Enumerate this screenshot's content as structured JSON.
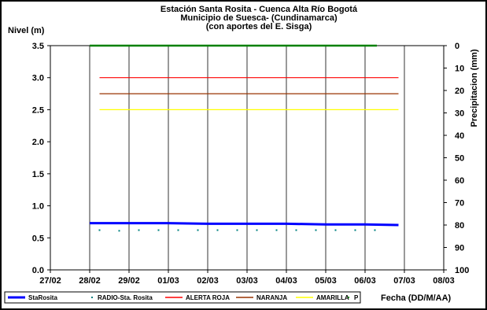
{
  "chart_data": {
    "type": "line",
    "title": [
      "Estación Santa Rosita - Cuenca Alta Río Bogotá",
      "Municipio de Suesca- (Cundinamarca)",
      "(con aportes del  E. Sisga)"
    ],
    "ylabel": "Nivel (m)",
    "y2label": "Precipitacion (mm)",
    "xlabel": "Fecha (DD/M/AA)",
    "x_categories": [
      "27/02",
      "28/02",
      "29/02",
      "01/03",
      "02/03",
      "03/03",
      "04/03",
      "05/03",
      "06/03",
      "07/03",
      "08/03"
    ],
    "ylim": [
      0.0,
      3.5
    ],
    "y_ticks": [
      "0.0",
      "0.5",
      "1.0",
      "1.5",
      "2.0",
      "2.5",
      "3.0",
      "3.5"
    ],
    "y2lim": [
      100,
      0
    ],
    "y2_ticks": [
      "0",
      "10",
      "20",
      "30",
      "40",
      "50",
      "60",
      "70",
      "80",
      "90",
      "100"
    ],
    "grid": "vertical",
    "series": [
      {
        "name": "StaRosita",
        "color": "#0000ff",
        "style": "thick-line",
        "x": [
          1.0,
          2.0,
          3.0,
          4.0,
          5.0,
          6.0,
          7.0,
          8.0,
          8.85
        ],
        "y": [
          0.73,
          0.73,
          0.73,
          0.72,
          0.72,
          0.72,
          0.71,
          0.71,
          0.7
        ]
      },
      {
        "name": "RADIO-Sta. Rosita",
        "color": "#008080",
        "style": "dots",
        "x": [
          1.25,
          1.75,
          2.25,
          2.75,
          3.25,
          3.75,
          4.25,
          4.75,
          5.25,
          5.75,
          6.25,
          6.75,
          7.25,
          7.75,
          8.25
        ],
        "y": [
          0.62,
          0.61,
          0.62,
          0.62,
          0.62,
          0.62,
          0.62,
          0.62,
          0.62,
          0.62,
          0.62,
          0.62,
          0.62,
          0.62,
          0.62
        ]
      },
      {
        "name": "ALERTA ROJA",
        "color": "#ff0000",
        "style": "line",
        "x": [
          1.25,
          8.85
        ],
        "y": [
          3.0,
          3.0
        ]
      },
      {
        "name": "NARANJA",
        "color": "#993300",
        "style": "line",
        "x": [
          1.25,
          8.85
        ],
        "y": [
          2.75,
          2.75
        ]
      },
      {
        "name": "AMARILLA",
        "color": "#ffff00",
        "style": "line",
        "x": [
          1.25,
          8.85
        ],
        "y": [
          2.5,
          2.5
        ]
      },
      {
        "name": "P",
        "color": "#008000",
        "style": "precip",
        "axis": "y2",
        "x": [
          1.0,
          8.3
        ],
        "y": [
          0,
          0
        ]
      }
    ]
  }
}
